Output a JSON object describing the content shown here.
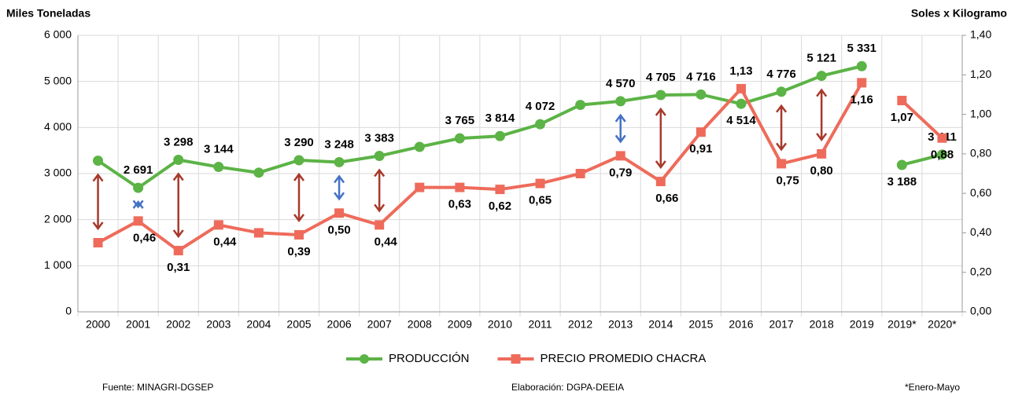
{
  "chart_data": {
    "type": "line",
    "y_axis_label": "Miles Toneladas",
    "y2_axis_label": "Soles x Kilogramo",
    "categories": [
      "2000",
      "2001",
      "2002",
      "2003",
      "2004",
      "2005",
      "2006",
      "2007",
      "2008",
      "2009",
      "2010",
      "2011",
      "2012",
      "2013",
      "2014",
      "2015",
      "2016",
      "2017",
      "2018",
      "2019",
      "2019*",
      "2020*"
    ],
    "break_before": "2019*",
    "series": [
      {
        "name": "PRODUCCIÓN",
        "color": "#5cb346",
        "marker": "circle",
        "values": [
          3280,
          2691,
          3298,
          3144,
          3020,
          3290,
          3248,
          3383,
          3580,
          3765,
          3814,
          4072,
          4490,
          4570,
          4705,
          4716,
          4514,
          4776,
          5121,
          5331,
          3188,
          3411
        ],
        "value_labels": [
          null,
          "2 691",
          "3 298",
          "3 144",
          null,
          "3 290",
          "3 248",
          "3 383",
          null,
          "3 765",
          "3 814",
          "4 072",
          null,
          "4 570",
          "4 705",
          "4 716",
          "4 514",
          "4 776",
          "5 121",
          "5 331",
          "3 188",
          "3 411"
        ]
      },
      {
        "name": "PRECIO PROMEDIO CHACRA",
        "color": "#ee6b5b",
        "marker": "square",
        "axis": "y2",
        "values": [
          0.35,
          0.46,
          0.31,
          0.44,
          0.4,
          0.39,
          0.5,
          0.44,
          0.63,
          0.63,
          0.62,
          0.65,
          0.7,
          0.79,
          0.66,
          0.91,
          1.13,
          0.75,
          0.8,
          1.16,
          1.07,
          0.88
        ],
        "value_labels": [
          null,
          "0,46",
          "0,31",
          "0,44",
          null,
          "0,39",
          "0,50",
          "0,44",
          null,
          "0,63",
          "0,62",
          "0,65",
          null,
          "0,79",
          "0,66",
          "0,91",
          "1,13",
          "0,75",
          "0,80",
          "1,16",
          "1,07",
          "0,88"
        ]
      }
    ],
    "ylim": [
      0,
      6000
    ],
    "yticks": [
      0,
      {
        "value": 1000,
        "label": "1 000"
      },
      {
        "value": 2000,
        "label": "2 000"
      },
      {
        "value": 3000,
        "label": "3 000"
      },
      {
        "value": 4000,
        "label": "4 000"
      },
      {
        "value": 5000,
        "label": "5 000"
      },
      {
        "value": 6000,
        "label": "6 000"
      }
    ],
    "y2lim": [
      0,
      1.4
    ],
    "y2ticks": [
      {
        "value": 0,
        "label": "0,00"
      },
      {
        "value": 0.2,
        "label": "0,20"
      },
      {
        "value": 0.4,
        "label": "0,40"
      },
      {
        "value": 0.6,
        "label": "0,60"
      },
      {
        "value": 0.8,
        "label": "0,80"
      },
      {
        "value": 1.0,
        "label": "1,00"
      },
      {
        "value": 1.2,
        "label": "1,20"
      },
      {
        "value": 1.4,
        "label": "1,40"
      }
    ],
    "grid": true,
    "legend": "bottom",
    "footnotes": [
      "Fuente: MINAGRI-DGSEP",
      "Elaboración: DGPA-DEEIA",
      "*Enero-Mayo"
    ]
  }
}
